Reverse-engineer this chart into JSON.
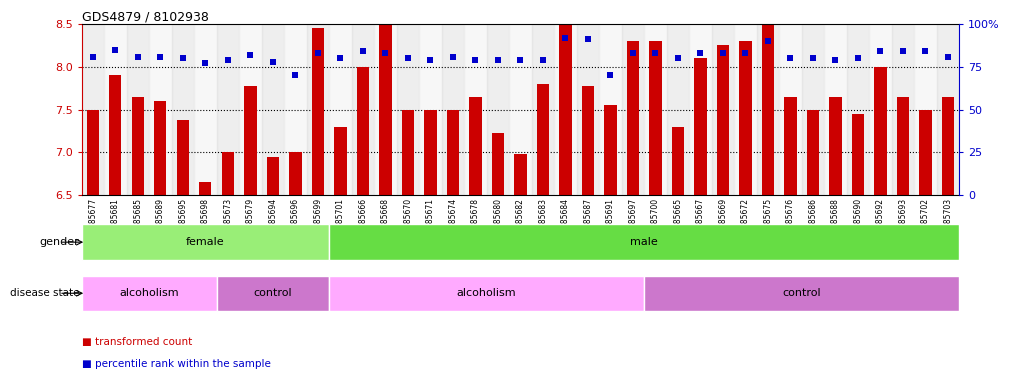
{
  "title": "GDS4879 / 8102938",
  "samples": [
    "GSM1085677",
    "GSM1085681",
    "GSM1085685",
    "GSM1085689",
    "GSM1085695",
    "GSM1085698",
    "GSM1085673",
    "GSM1085679",
    "GSM1085694",
    "GSM1085696",
    "GSM1085699",
    "GSM1085701",
    "GSM1085666",
    "GSM1085668",
    "GSM1085670",
    "GSM1085671",
    "GSM1085674",
    "GSM1085678",
    "GSM1085680",
    "GSM1085682",
    "GSM1085683",
    "GSM1085684",
    "GSM1085687",
    "GSM1085691",
    "GSM1085697",
    "GSM1085700",
    "GSM1085665",
    "GSM1085667",
    "GSM1085669",
    "GSM1085672",
    "GSM1085675",
    "GSM1085676",
    "GSM1085686",
    "GSM1085688",
    "GSM1085690",
    "GSM1085692",
    "GSM1085693",
    "GSM1085702",
    "GSM1085703"
  ],
  "bar_values": [
    7.5,
    7.9,
    7.65,
    7.6,
    7.38,
    6.65,
    7.0,
    7.78,
    6.95,
    7.0,
    8.45,
    7.3,
    8.0,
    8.5,
    7.5,
    7.5,
    7.5,
    7.65,
    7.22,
    6.98,
    7.8,
    8.5,
    7.78,
    7.55,
    8.3,
    8.3,
    7.3,
    8.1,
    8.25,
    8.3,
    8.5,
    7.65,
    7.5,
    7.65,
    7.45,
    8.0,
    7.65,
    7.5,
    7.65
  ],
  "percentile_values": [
    81,
    85,
    81,
    81,
    80,
    77,
    79,
    82,
    78,
    70,
    83,
    80,
    84,
    83,
    80,
    79,
    81,
    79,
    79,
    79,
    79,
    92,
    91,
    70,
    83,
    83,
    80,
    83,
    83,
    83,
    90,
    80,
    80,
    79,
    80,
    84,
    84,
    84,
    81
  ],
  "ylim_min": 6.5,
  "ylim_max": 8.5,
  "yticks": [
    6.5,
    7.0,
    7.5,
    8.0,
    8.5
  ],
  "bar_color": "#cc0000",
  "dot_color": "#0000cc",
  "bg_color_even": "#dedede",
  "bg_color_odd": "#f0f0f0",
  "gender_groups": [
    {
      "label": "female",
      "start": 0,
      "end": 11,
      "color": "#99ee77"
    },
    {
      "label": "male",
      "start": 11,
      "end": 39,
      "color": "#66dd44"
    }
  ],
  "disease_groups": [
    {
      "label": "alcoholism",
      "start": 0,
      "end": 6,
      "color": "#ffaaff"
    },
    {
      "label": "control",
      "start": 6,
      "end": 11,
      "color": "#cc77cc"
    },
    {
      "label": "alcoholism",
      "start": 11,
      "end": 25,
      "color": "#ffaaff"
    },
    {
      "label": "control",
      "start": 25,
      "end": 39,
      "color": "#cc77cc"
    }
  ],
  "legend_items": [
    {
      "label": "transformed count",
      "color": "#cc0000"
    },
    {
      "label": "percentile rank within the sample",
      "color": "#0000cc"
    }
  ],
  "grid_lines": [
    7.0,
    7.5,
    8.0
  ]
}
